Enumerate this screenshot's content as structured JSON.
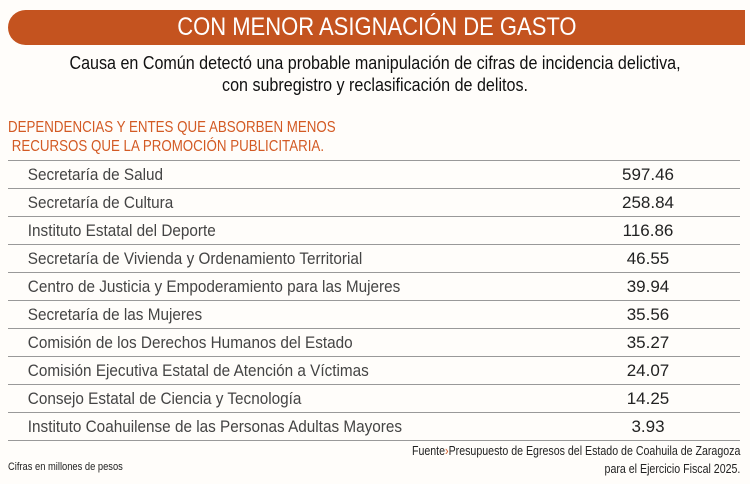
{
  "title": "CON MENOR ASIGNACIÓN DE GASTO",
  "subtitle": [
    "Causa en Común detectó una probable manipulación de cifras de incidencia delictiva,",
    "con subregistro y reclasificación de delitos."
  ],
  "section_title": [
    "DEPENDENCIAS Y ENTES QUE ABSORBEN MENOS",
    " RECURSOS QUE LA PROMOCIÓN PUBLICITARIA."
  ],
  "rows": [
    {
      "name": "Secretaría de Salud",
      "value": "597.46"
    },
    {
      "name": "Secretaría de Cultura",
      "value": "258.84"
    },
    {
      "name": "Instituto Estatal del Deporte",
      "value": "116.86"
    },
    {
      "name": "Secretaría de Vivienda y Ordenamiento Territorial",
      "value": "46.55"
    },
    {
      "name": "Centro de Justicia y Empoderamiento para las Mujeres",
      "value": "39.94"
    },
    {
      "name": "Secretaría de las Mujeres",
      "value": "35.56"
    },
    {
      "name": "Comisión de los Derechos Humanos del Estado",
      "value": "35.27"
    },
    {
      "name": "Comisión Ejecutiva Estatal de Atención a Víctimas",
      "value": "24.07"
    },
    {
      "name": "Consejo Estatal de Ciencia y Tecnología",
      "value": "14.25"
    },
    {
      "name": "Instituto Coahuilense de las Personas Adultas Mayores",
      "value": "3.93"
    }
  ],
  "note": "Cifras en millones de pesos",
  "source": {
    "label": "Fuente",
    "arrow": "›",
    "line1": "Presupuesto de Egresos del Estado de Coahuila de Zaragoza",
    "line2": "para el Ejercicio Fiscal 2025."
  },
  "colors": {
    "accent": "#c4531f",
    "section": "#d35a24"
  }
}
